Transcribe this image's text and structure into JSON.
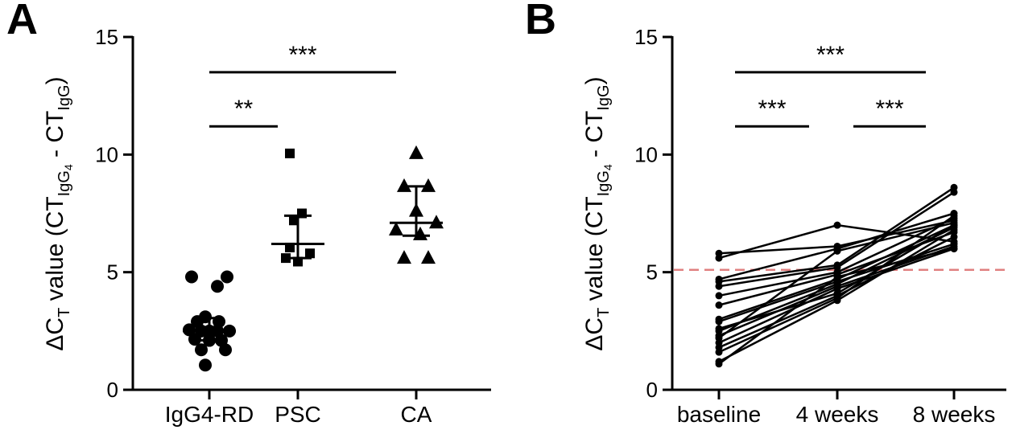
{
  "chart_data": [
    {
      "panel": "A",
      "type": "scatter",
      "title": "",
      "ylim": [
        0,
        15
      ],
      "yticks": [
        0,
        5,
        10,
        15
      ],
      "ylabel": {
        "delta": "ΔC",
        "t_sub": "T",
        "value_text": " value (CT",
        "igg4_sub": "IgG",
        "igg4_subsub": "4",
        "minus": " - CT",
        "igg_sub": "IgG",
        "close": ")"
      },
      "categories": [
        "IgG4-RD",
        "PSC",
        "CA"
      ],
      "groups": [
        {
          "name": "IgG4-RD",
          "marker": "circle",
          "points": [
            [
              -0.22,
              4.8
            ],
            [
              0.22,
              4.8
            ],
            [
              0.1,
              4.4
            ],
            [
              -0.05,
              3.1
            ],
            [
              0.12,
              2.9
            ],
            [
              -0.15,
              2.9
            ],
            [
              -0.25,
              2.55
            ],
            [
              -0.1,
              2.5
            ],
            [
              0.0,
              2.5
            ],
            [
              0.1,
              2.5
            ],
            [
              0.25,
              2.5
            ],
            [
              -0.18,
              2.15
            ],
            [
              0.0,
              2.1
            ],
            [
              0.15,
              2.1
            ],
            [
              -0.1,
              1.7
            ],
            [
              0.2,
              1.7
            ],
            [
              -0.05,
              1.05
            ]
          ],
          "median": 2.5,
          "err_low": 2.1,
          "err_high": 3.05
        },
        {
          "name": "PSC",
          "marker": "square",
          "points": [
            [
              -0.1,
              10.05
            ],
            [
              0.05,
              7.5
            ],
            [
              -0.05,
              7.2
            ],
            [
              -0.1,
              6.05
            ],
            [
              0.15,
              5.8
            ],
            [
              -0.15,
              5.6
            ],
            [
              0.0,
              5.45
            ]
          ],
          "median": 6.2,
          "err_low": 5.6,
          "err_high": 7.4
        },
        {
          "name": "CA",
          "marker": "triangle",
          "points": [
            [
              0.0,
              10.05
            ],
            [
              -0.15,
              8.65
            ],
            [
              0.15,
              8.65
            ],
            [
              0.0,
              7.6
            ],
            [
              0.25,
              7.1
            ],
            [
              -0.25,
              6.8
            ],
            [
              0.05,
              6.6
            ],
            [
              -0.15,
              5.6
            ],
            [
              0.15,
              5.6
            ]
          ],
          "median": 7.1,
          "err_low": 6.55,
          "err_high": 8.65
        }
      ],
      "significance": [
        {
          "from": 0,
          "to": 1,
          "y": 11.2,
          "label": "**"
        },
        {
          "from": 0,
          "to": 2,
          "y": 13.5,
          "label": "***"
        }
      ]
    },
    {
      "panel": "B",
      "type": "line",
      "title": "",
      "ylim": [
        0,
        15
      ],
      "yticks": [
        0,
        5,
        10,
        15
      ],
      "ylabel": {
        "delta": "ΔC",
        "t_sub": "T",
        "value_text": " value (CT",
        "igg4_sub": "IgG",
        "igg4_subsub": "4",
        "minus": " - CT",
        "igg_sub": "IgG",
        "close": ")"
      },
      "categories": [
        "baseline",
        "4 weeks",
        "8 weeks"
      ],
      "reference_line": {
        "y": 5.1,
        "color": "#e08080",
        "style": "dashed"
      },
      "series": [
        {
          "values": [
            5.8,
            6.1,
            7.2
          ]
        },
        {
          "values": [
            5.6,
            7.0,
            6.3
          ]
        },
        {
          "values": [
            4.7,
            6.0,
            7.5
          ]
        },
        {
          "values": [
            4.6,
            5.3,
            8.6
          ]
        },
        {
          "values": [
            4.4,
            5.2,
            8.4
          ]
        },
        {
          "values": [
            4.0,
            5.0,
            7.3
          ]
        },
        {
          "values": [
            3.6,
            4.9,
            6.7
          ]
        },
        {
          "values": [
            3.0,
            4.7,
            7.0
          ]
        },
        {
          "values": [
            2.9,
            4.6,
            6.2
          ]
        },
        {
          "values": [
            2.5,
            4.5,
            6.9
          ]
        },
        {
          "values": [
            2.3,
            4.4,
            6.1
          ]
        },
        {
          "values": [
            2.2,
            5.9,
            7.1
          ]
        },
        {
          "values": [
            2.0,
            4.3,
            6.0
          ]
        },
        {
          "values": [
            1.8,
            4.0,
            6.5
          ]
        },
        {
          "values": [
            1.6,
            3.9,
            7.4
          ]
        },
        {
          "values": [
            1.2,
            3.8,
            6.8
          ]
        },
        {
          "values": [
            1.1,
            4.8,
            6.0
          ]
        },
        {
          "values": [
            2.6,
            4.1,
            7.0
          ]
        }
      ],
      "significance": [
        {
          "from": 0,
          "to": 1,
          "y": 11.2,
          "label": "***"
        },
        {
          "from": 1,
          "to": 2,
          "y": 11.2,
          "label": "***"
        },
        {
          "from": 0,
          "to": 2,
          "y": 13.5,
          "label": "***"
        }
      ]
    }
  ],
  "panel_letters": {
    "a": "A",
    "b": "B"
  },
  "colors": {
    "ink": "#000000",
    "reference": "#e08080"
  }
}
